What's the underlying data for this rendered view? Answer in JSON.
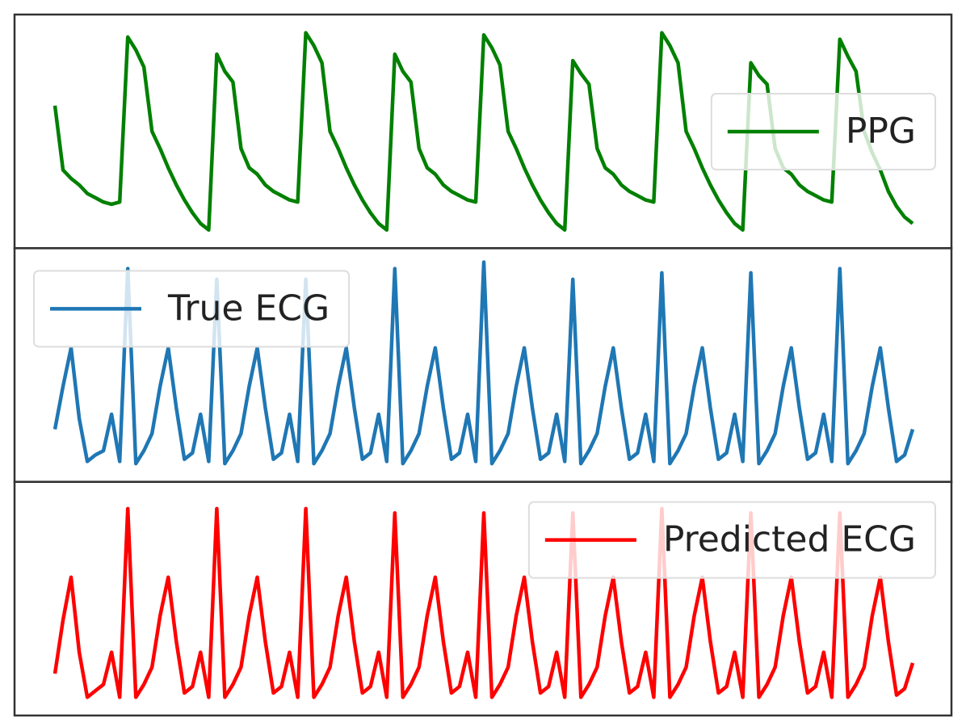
{
  "chart_data": [
    {
      "type": "line",
      "legend": "upper right",
      "xlim": [
        0,
        106
      ],
      "ylim": [
        0,
        1
      ],
      "x": [
        0,
        1,
        2,
        3,
        4,
        5,
        6,
        7,
        8,
        9,
        10,
        11,
        12,
        13,
        14,
        15,
        16,
        17,
        18,
        19,
        20,
        21,
        22,
        23,
        24,
        25,
        26,
        27,
        28,
        29,
        30,
        31,
        32,
        33,
        34,
        35,
        36,
        37,
        38,
        39,
        40,
        41,
        42,
        43,
        44,
        45,
        46,
        47,
        48,
        49,
        50,
        51,
        52,
        53,
        54,
        55,
        56,
        57,
        58,
        59,
        60,
        61,
        62,
        63,
        64,
        65,
        66,
        67,
        68,
        69,
        70,
        71,
        72,
        73,
        74,
        75,
        76,
        77,
        78,
        79,
        80,
        81,
        82,
        83,
        84,
        85,
        86,
        87,
        88,
        89,
        90,
        91,
        92,
        93,
        94,
        95,
        96,
        97,
        98,
        99,
        100,
        101,
        102,
        103,
        104,
        105,
        106
      ],
      "series": [
        {
          "name": "PPG",
          "color": "#008000",
          "values": [
            0.62,
            0.32,
            0.28,
            0.25,
            0.21,
            0.19,
            0.17,
            0.16,
            0.17,
            0.94,
            0.88,
            0.8,
            0.5,
            0.42,
            0.33,
            0.25,
            0.18,
            0.12,
            0.07,
            0.04,
            0.86,
            0.78,
            0.73,
            0.42,
            0.33,
            0.3,
            0.25,
            0.22,
            0.2,
            0.18,
            0.17,
            0.96,
            0.9,
            0.82,
            0.5,
            0.42,
            0.33,
            0.25,
            0.18,
            0.12,
            0.07,
            0.04,
            0.86,
            0.78,
            0.73,
            0.42,
            0.33,
            0.3,
            0.25,
            0.22,
            0.2,
            0.18,
            0.17,
            0.95,
            0.89,
            0.81,
            0.5,
            0.42,
            0.33,
            0.25,
            0.18,
            0.12,
            0.07,
            0.04,
            0.83,
            0.77,
            0.72,
            0.42,
            0.33,
            0.3,
            0.25,
            0.22,
            0.2,
            0.18,
            0.17,
            0.96,
            0.9,
            0.82,
            0.5,
            0.42,
            0.33,
            0.25,
            0.18,
            0.12,
            0.07,
            0.04,
            0.82,
            0.76,
            0.72,
            0.42,
            0.33,
            0.3,
            0.25,
            0.22,
            0.2,
            0.18,
            0.17,
            0.93,
            0.85,
            0.78,
            0.5,
            0.4,
            0.32,
            0.22,
            0.15,
            0.1,
            0.07
          ]
        }
      ]
    },
    {
      "type": "line",
      "legend": "upper left",
      "xlim": [
        0,
        106
      ],
      "ylim": [
        0,
        1
      ],
      "x": [
        0,
        1,
        2,
        3,
        4,
        5,
        6,
        7,
        8,
        9,
        10,
        11,
        12,
        13,
        14,
        15,
        16,
        17,
        18,
        19,
        20,
        21,
        22,
        23,
        24,
        25,
        26,
        27,
        28,
        29,
        30,
        31,
        32,
        33,
        34,
        35,
        36,
        37,
        38,
        39,
        40,
        41,
        42,
        43,
        44,
        45,
        46,
        47,
        48,
        49,
        50,
        51,
        52,
        53,
        54,
        55,
        56,
        57,
        58,
        59,
        60,
        61,
        62,
        63,
        64,
        65,
        66,
        67,
        68,
        69,
        70,
        71,
        72,
        73,
        74,
        75,
        76,
        77,
        78,
        79,
        80,
        81,
        82,
        83,
        84,
        85,
        86,
        87,
        88,
        89,
        90,
        91,
        92,
        93,
        94,
        95,
        96,
        97,
        98,
        99,
        100,
        101,
        102,
        103,
        104,
        105,
        106
      ],
      "series": [
        {
          "name": "True ECG",
          "color": "#1f77b4",
          "values": [
            0.2,
            0.4,
            0.58,
            0.25,
            0.05,
            0.08,
            0.1,
            0.27,
            0.05,
            0.95,
            0.04,
            0.1,
            0.18,
            0.4,
            0.58,
            0.3,
            0.06,
            0.09,
            0.27,
            0.05,
            0.9,
            0.04,
            0.1,
            0.18,
            0.4,
            0.58,
            0.3,
            0.06,
            0.09,
            0.27,
            0.05,
            0.9,
            0.04,
            0.1,
            0.18,
            0.4,
            0.58,
            0.3,
            0.06,
            0.09,
            0.27,
            0.05,
            0.95,
            0.04,
            0.1,
            0.18,
            0.4,
            0.58,
            0.3,
            0.06,
            0.09,
            0.27,
            0.05,
            0.98,
            0.04,
            0.1,
            0.18,
            0.4,
            0.58,
            0.3,
            0.06,
            0.09,
            0.27,
            0.05,
            0.9,
            0.04,
            0.1,
            0.18,
            0.4,
            0.58,
            0.3,
            0.06,
            0.09,
            0.27,
            0.05,
            0.93,
            0.04,
            0.1,
            0.18,
            0.4,
            0.58,
            0.3,
            0.06,
            0.09,
            0.27,
            0.05,
            0.93,
            0.04,
            0.1,
            0.18,
            0.4,
            0.58,
            0.3,
            0.06,
            0.09,
            0.27,
            0.05,
            0.95,
            0.04,
            0.1,
            0.18,
            0.4,
            0.58,
            0.3,
            0.05,
            0.08,
            0.2
          ]
        }
      ]
    },
    {
      "type": "line",
      "legend": "upper right",
      "xlim": [
        0,
        106
      ],
      "ylim": [
        0,
        1
      ],
      "x": [
        0,
        1,
        2,
        3,
        4,
        5,
        6,
        7,
        8,
        9,
        10,
        11,
        12,
        13,
        14,
        15,
        16,
        17,
        18,
        19,
        20,
        21,
        22,
        23,
        24,
        25,
        26,
        27,
        28,
        29,
        30,
        31,
        32,
        33,
        34,
        35,
        36,
        37,
        38,
        39,
        40,
        41,
        42,
        43,
        44,
        45,
        46,
        47,
        48,
        49,
        50,
        51,
        52,
        53,
        54,
        55,
        56,
        57,
        58,
        59,
        60,
        61,
        62,
        63,
        64,
        65,
        66,
        67,
        68,
        69,
        70,
        71,
        72,
        73,
        74,
        75,
        76,
        77,
        78,
        79,
        80,
        81,
        82,
        83,
        84,
        85,
        86,
        87,
        88,
        89,
        90,
        91,
        92,
        93,
        94,
        95,
        96,
        97,
        98,
        99,
        100,
        101,
        102,
        103,
        104,
        105,
        106
      ],
      "series": [
        {
          "name": "Predicted ECG",
          "color": "#ff0000",
          "values": [
            0.15,
            0.4,
            0.6,
            0.25,
            0.04,
            0.07,
            0.1,
            0.25,
            0.04,
            0.92,
            0.04,
            0.1,
            0.18,
            0.42,
            0.6,
            0.3,
            0.06,
            0.09,
            0.25,
            0.04,
            0.92,
            0.04,
            0.1,
            0.18,
            0.42,
            0.6,
            0.3,
            0.06,
            0.09,
            0.25,
            0.04,
            0.92,
            0.04,
            0.1,
            0.18,
            0.42,
            0.6,
            0.3,
            0.06,
            0.09,
            0.25,
            0.04,
            0.9,
            0.04,
            0.1,
            0.18,
            0.42,
            0.6,
            0.3,
            0.06,
            0.09,
            0.25,
            0.04,
            0.9,
            0.04,
            0.1,
            0.18,
            0.42,
            0.6,
            0.3,
            0.06,
            0.09,
            0.25,
            0.04,
            0.9,
            0.04,
            0.1,
            0.18,
            0.42,
            0.6,
            0.3,
            0.06,
            0.09,
            0.25,
            0.04,
            0.92,
            0.04,
            0.1,
            0.18,
            0.42,
            0.6,
            0.3,
            0.06,
            0.09,
            0.25,
            0.04,
            0.9,
            0.04,
            0.1,
            0.18,
            0.42,
            0.6,
            0.3,
            0.06,
            0.09,
            0.25,
            0.04,
            0.9,
            0.04,
            0.1,
            0.18,
            0.42,
            0.6,
            0.3,
            0.05,
            0.08,
            0.2
          ]
        }
      ]
    }
  ]
}
